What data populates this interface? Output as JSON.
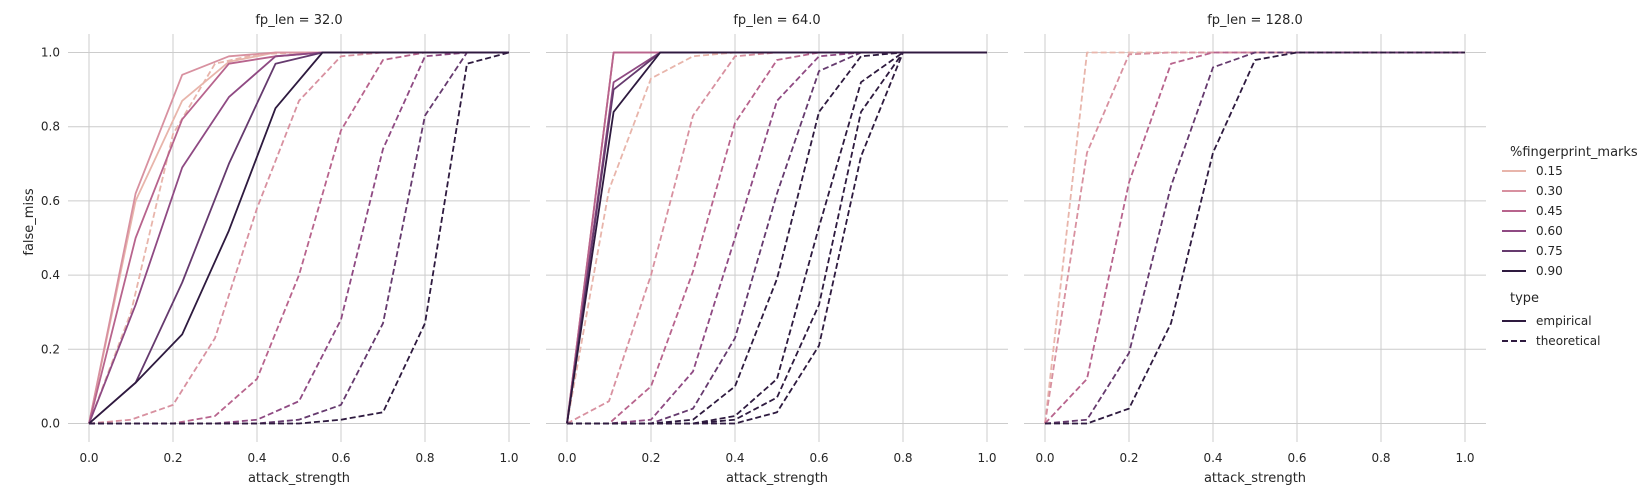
{
  "colors": {
    "0.15": "#e8b5ab",
    "0.30": "#d891a0",
    "0.45": "#b8648d",
    "0.60": "#8f4a83",
    "0.75": "#653a6e",
    "0.90": "#2e1a3f",
    "grid": "#cccccc",
    "text": "#262626"
  },
  "legend": {
    "hue_title": "%fingerprint_marks",
    "hue_entries": [
      "0.15",
      "0.30",
      "0.45",
      "0.60",
      "0.75",
      "0.90"
    ],
    "style_title": "type",
    "style_entries": [
      "empirical",
      "theoretical"
    ]
  },
  "chart_data": [
    {
      "type": "line",
      "title": "fp_len = 32.0",
      "xlabel": "attack_strength",
      "ylabel": "false_miss",
      "xlim": [
        -0.05,
        1.05
      ],
      "ylim": [
        -0.05,
        1.05
      ],
      "xticks": [
        "0.0",
        "0.2",
        "0.4",
        "0.6",
        "0.8",
        "1.0"
      ],
      "yticks": [
        "0.0",
        "0.2",
        "0.4",
        "0.6",
        "0.8",
        "1.0"
      ],
      "grid": true,
      "series": [
        {
          "name": "0.15",
          "type": "empirical",
          "x": [
            0,
            0.111,
            0.222,
            0.333,
            0.444,
            0.556,
            0.667,
            0.778,
            0.889,
            1.0
          ],
          "values": [
            0,
            0.6,
            0.87,
            0.975,
            1.0,
            1.0,
            1.0,
            1.0,
            1.0,
            1.0
          ]
        },
        {
          "name": "0.30",
          "type": "empirical",
          "x": [
            0,
            0.111,
            0.222,
            0.333,
            0.444,
            0.556,
            0.667,
            0.778,
            0.889,
            1.0
          ],
          "values": [
            0,
            0.62,
            0.94,
            0.99,
            1.0,
            1.0,
            1.0,
            1.0,
            1.0,
            1.0
          ]
        },
        {
          "name": "0.45",
          "type": "empirical",
          "x": [
            0,
            0.111,
            0.222,
            0.333,
            0.444,
            0.556,
            0.667,
            0.778,
            0.889,
            1.0
          ],
          "values": [
            0,
            0.5,
            0.82,
            0.97,
            0.99,
            1.0,
            1.0,
            1.0,
            1.0,
            1.0
          ]
        },
        {
          "name": "0.60",
          "type": "empirical",
          "x": [
            0,
            0.111,
            0.222,
            0.333,
            0.444,
            0.556,
            0.667,
            0.778,
            0.889,
            1.0
          ],
          "values": [
            0,
            0.32,
            0.69,
            0.88,
            0.99,
            1.0,
            1.0,
            1.0,
            1.0,
            1.0
          ]
        },
        {
          "name": "0.75",
          "type": "empirical",
          "x": [
            0,
            0.111,
            0.222,
            0.333,
            0.444,
            0.556,
            0.667,
            0.778,
            0.889,
            1.0
          ],
          "values": [
            0,
            0.11,
            0.38,
            0.7,
            0.97,
            1.0,
            1.0,
            1.0,
            1.0,
            1.0
          ]
        },
        {
          "name": "0.90",
          "type": "empirical",
          "x": [
            0,
            0.111,
            0.222,
            0.333,
            0.444,
            0.556,
            0.667,
            0.778,
            0.889,
            1.0
          ],
          "values": [
            0,
            0.11,
            0.24,
            0.52,
            0.85,
            1.0,
            1.0,
            1.0,
            1.0,
            1.0
          ]
        },
        {
          "name": "0.15",
          "type": "theoretical",
          "x": [
            0,
            0.1,
            0.2,
            0.3,
            0.4,
            0.5,
            0.6,
            0.7,
            0.8,
            0.9,
            1.0
          ],
          "values": [
            0,
            0.3,
            0.78,
            0.97,
            0.995,
            1.0,
            1.0,
            1.0,
            1.0,
            1.0,
            1.0
          ]
        },
        {
          "name": "0.30",
          "type": "theoretical",
          "x": [
            0,
            0.1,
            0.2,
            0.3,
            0.4,
            0.5,
            0.6,
            0.7,
            0.8,
            0.9,
            1.0
          ],
          "values": [
            0,
            0.01,
            0.05,
            0.23,
            0.58,
            0.87,
            0.99,
            1.0,
            1.0,
            1.0,
            1.0
          ]
        },
        {
          "name": "0.45",
          "type": "theoretical",
          "x": [
            0,
            0.1,
            0.2,
            0.3,
            0.4,
            0.5,
            0.6,
            0.7,
            0.8,
            0.9,
            1.0
          ],
          "values": [
            0,
            0.0,
            0.0,
            0.02,
            0.12,
            0.4,
            0.79,
            0.98,
            1.0,
            1.0,
            1.0
          ]
        },
        {
          "name": "0.60",
          "type": "theoretical",
          "x": [
            0,
            0.1,
            0.2,
            0.3,
            0.4,
            0.5,
            0.6,
            0.7,
            0.8,
            0.9,
            1.0
          ],
          "values": [
            0,
            0.0,
            0.0,
            0.0,
            0.01,
            0.06,
            0.28,
            0.74,
            0.99,
            1.0,
            1.0
          ]
        },
        {
          "name": "0.75",
          "type": "theoretical",
          "x": [
            0,
            0.1,
            0.2,
            0.3,
            0.4,
            0.5,
            0.6,
            0.7,
            0.8,
            0.9,
            1.0
          ],
          "values": [
            0,
            0.0,
            0.0,
            0.0,
            0.0,
            0.01,
            0.05,
            0.27,
            0.83,
            1.0,
            1.0
          ]
        },
        {
          "name": "0.90",
          "type": "theoretical",
          "x": [
            0,
            0.1,
            0.2,
            0.3,
            0.4,
            0.5,
            0.6,
            0.7,
            0.8,
            0.9,
            1.0
          ],
          "values": [
            0,
            0.0,
            0.0,
            0.0,
            0.0,
            0.0,
            0.01,
            0.03,
            0.27,
            0.97,
            1.0
          ]
        }
      ]
    },
    {
      "type": "line",
      "title": "fp_len = 64.0",
      "xlabel": "attack_strength",
      "ylabel": "",
      "xlim": [
        -0.05,
        1.05
      ],
      "ylim": [
        -0.05,
        1.05
      ],
      "xticks": [
        "0.0",
        "0.2",
        "0.4",
        "0.6",
        "0.8",
        "1.0"
      ],
      "yticks": [],
      "grid": true,
      "series": [
        {
          "name": "0.15",
          "type": "empirical",
          "x": [
            0,
            0.111,
            0.222,
            0.333,
            0.444,
            0.556,
            0.667,
            0.778,
            0.889,
            1.0
          ],
          "values": [
            0,
            1.0,
            1.0,
            1.0,
            1.0,
            1.0,
            1.0,
            1.0,
            1.0,
            1.0
          ]
        },
        {
          "name": "0.30",
          "type": "empirical",
          "x": [
            0,
            0.111,
            0.222,
            0.333,
            0.444,
            0.556,
            0.667,
            0.778,
            0.889,
            1.0
          ],
          "values": [
            0,
            1.0,
            1.0,
            1.0,
            1.0,
            1.0,
            1.0,
            1.0,
            1.0,
            1.0
          ]
        },
        {
          "name": "0.45",
          "type": "empirical",
          "x": [
            0,
            0.111,
            0.222,
            0.333,
            0.444,
            0.556,
            0.667,
            0.778,
            0.889,
            1.0
          ],
          "values": [
            0,
            1.0,
            1.0,
            1.0,
            1.0,
            1.0,
            1.0,
            1.0,
            1.0,
            1.0
          ]
        },
        {
          "name": "0.60",
          "type": "empirical",
          "x": [
            0,
            0.111,
            0.222,
            0.333,
            0.444,
            0.556,
            0.667,
            0.778,
            0.889,
            1.0
          ],
          "values": [
            0,
            0.92,
            1.0,
            1.0,
            1.0,
            1.0,
            1.0,
            1.0,
            1.0,
            1.0
          ]
        },
        {
          "name": "0.75",
          "type": "empirical",
          "x": [
            0,
            0.111,
            0.222,
            0.333,
            0.444,
            0.556,
            0.667,
            0.778,
            0.889,
            1.0
          ],
          "values": [
            0,
            0.9,
            1.0,
            1.0,
            1.0,
            1.0,
            1.0,
            1.0,
            1.0,
            1.0
          ]
        },
        {
          "name": "0.90",
          "type": "empirical",
          "x": [
            0,
            0.111,
            0.222,
            0.333,
            0.444,
            0.556,
            0.667,
            0.778,
            0.889,
            1.0
          ],
          "values": [
            0,
            0.84,
            1.0,
            1.0,
            1.0,
            1.0,
            1.0,
            1.0,
            1.0,
            1.0
          ]
        },
        {
          "name": "0.15",
          "type": "theoretical",
          "x": [
            0,
            0.1,
            0.2,
            0.3,
            0.4,
            0.5,
            0.6,
            0.7,
            0.8,
            0.9,
            1.0
          ],
          "values": [
            0,
            0.63,
            0.93,
            0.99,
            1.0,
            1.0,
            1.0,
            1.0,
            1.0,
            1.0,
            1.0
          ]
        },
        {
          "name": "0.30",
          "type": "theoretical",
          "x": [
            0,
            0.1,
            0.2,
            0.3,
            0.4,
            0.5,
            0.6,
            0.7,
            0.8,
            0.9,
            1.0
          ],
          "values": [
            0,
            0.06,
            0.4,
            0.83,
            0.99,
            1.0,
            1.0,
            1.0,
            1.0,
            1.0,
            1.0
          ]
        },
        {
          "name": "0.45",
          "type": "theoretical",
          "x": [
            0,
            0.1,
            0.2,
            0.3,
            0.4,
            0.5,
            0.6,
            0.7,
            0.8,
            0.9,
            1.0
          ],
          "values": [
            0,
            0.0,
            0.1,
            0.41,
            0.81,
            0.98,
            1.0,
            1.0,
            1.0,
            1.0,
            1.0
          ]
        },
        {
          "name": "0.60",
          "type": "theoretical",
          "x": [
            0,
            0.1,
            0.2,
            0.3,
            0.4,
            0.5,
            0.6,
            0.7,
            0.8,
            0.9,
            1.0
          ],
          "values": [
            0,
            0.0,
            0.01,
            0.14,
            0.5,
            0.87,
            0.99,
            1.0,
            1.0,
            1.0,
            1.0
          ]
        },
        {
          "name": "0.75",
          "type": "theoretical",
          "x": [
            0,
            0.1,
            0.2,
            0.3,
            0.4,
            0.5,
            0.6,
            0.7,
            0.8,
            0.9,
            1.0
          ],
          "values": [
            0,
            0.0,
            0.0,
            0.04,
            0.23,
            0.62,
            0.95,
            1.0,
            1.0,
            1.0,
            1.0
          ]
        },
        {
          "name": "0.90",
          "type": "theoretical",
          "x": [
            0,
            0.1,
            0.2,
            0.3,
            0.4,
            0.5,
            0.6,
            0.7,
            0.8,
            0.9,
            1.0
          ],
          "values": [
            0,
            0.0,
            0.0,
            0.01,
            0.1,
            0.39,
            0.84,
            0.99,
            1.0,
            1.0,
            1.0
          ]
        },
        {
          "name": "0.90",
          "type": "theoretical",
          "x": [
            0,
            0.1,
            0.2,
            0.3,
            0.4,
            0.5,
            0.6,
            0.7,
            0.8,
            0.9,
            1.0
          ],
          "values": [
            0,
            0.0,
            0.0,
            0.0,
            0.02,
            0.12,
            0.53,
            0.92,
            1.0,
            1.0,
            1.0
          ]
        },
        {
          "name": "0.90",
          "type": "theoretical",
          "x": [
            0,
            0.1,
            0.2,
            0.3,
            0.4,
            0.5,
            0.6,
            0.7,
            0.8,
            0.9,
            1.0
          ],
          "values": [
            0,
            0.0,
            0.0,
            0.0,
            0.01,
            0.07,
            0.32,
            0.84,
            1.0,
            1.0,
            1.0
          ]
        },
        {
          "name": "0.90",
          "type": "theoretical",
          "x": [
            0,
            0.1,
            0.2,
            0.3,
            0.4,
            0.5,
            0.6,
            0.7,
            0.8,
            0.9,
            1.0
          ],
          "values": [
            0,
            0.0,
            0.0,
            0.0,
            0.0,
            0.03,
            0.21,
            0.72,
            1.0,
            1.0,
            1.0
          ]
        }
      ]
    },
    {
      "type": "line",
      "title": "fp_len = 128.0",
      "xlabel": "attack_strength",
      "ylabel": "",
      "xlim": [
        -0.05,
        1.05
      ],
      "ylim": [
        -0.05,
        1.05
      ],
      "xticks": [
        "0.0",
        "0.2",
        "0.4",
        "0.6",
        "0.8",
        "1.0"
      ],
      "yticks": [],
      "grid": true,
      "series": [
        {
          "name": "0.15",
          "type": "theoretical",
          "x": [
            0,
            0.1,
            0.2,
            0.3,
            0.4,
            0.5,
            0.6,
            0.7,
            0.8,
            0.9,
            1.0
          ],
          "values": [
            0,
            1.0,
            1.0,
            1.0,
            1.0,
            1.0,
            1.0,
            1.0,
            1.0,
            1.0,
            1.0
          ]
        },
        {
          "name": "0.30",
          "type": "theoretical",
          "x": [
            0,
            0.1,
            0.2,
            0.3,
            0.4,
            0.5,
            0.6,
            0.7,
            0.8,
            0.9,
            1.0
          ],
          "values": [
            0,
            0.73,
            0.995,
            1.0,
            1.0,
            1.0,
            1.0,
            1.0,
            1.0,
            1.0,
            1.0
          ]
        },
        {
          "name": "0.45",
          "type": "theoretical",
          "x": [
            0,
            0.1,
            0.2,
            0.3,
            0.4,
            0.5,
            0.6,
            0.7,
            0.8,
            0.9,
            1.0
          ],
          "values": [
            0,
            0.12,
            0.65,
            0.97,
            1.0,
            1.0,
            1.0,
            1.0,
            1.0,
            1.0,
            1.0
          ]
        },
        {
          "name": "0.75",
          "type": "theoretical",
          "x": [
            0,
            0.1,
            0.2,
            0.3,
            0.4,
            0.5,
            0.6,
            0.7,
            0.8,
            0.9,
            1.0
          ],
          "values": [
            0,
            0.01,
            0.19,
            0.64,
            0.96,
            1.0,
            1.0,
            1.0,
            1.0,
            1.0,
            1.0
          ]
        },
        {
          "name": "0.90",
          "type": "theoretical",
          "x": [
            0,
            0.1,
            0.2,
            0.3,
            0.4,
            0.5,
            0.6,
            0.7,
            0.8,
            0.9,
            1.0
          ],
          "values": [
            0,
            0.0,
            0.04,
            0.27,
            0.73,
            0.98,
            1.0,
            1.0,
            1.0,
            1.0,
            1.0
          ]
        }
      ]
    }
  ]
}
